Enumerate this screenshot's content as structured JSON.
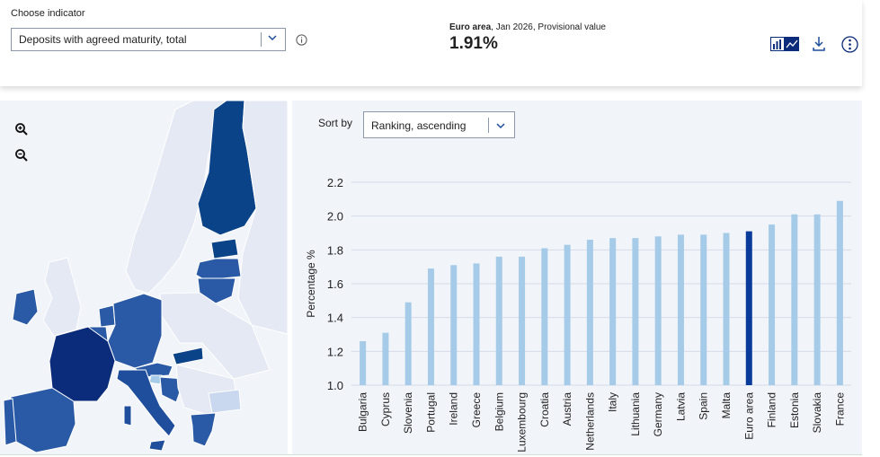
{
  "header": {
    "choose_label": "Choose indicator",
    "indicator_value": "Deposits with agreed maturity, total",
    "area_name": "Euro area",
    "area_detail": ", Jan 2026, Provisional value",
    "headline_value": "1.91%"
  },
  "icons": {
    "info": "info-icon",
    "chart_toggle": "bar-line-chart-icon",
    "download": "download-icon",
    "more": "more-options-icon",
    "zoom_in": "zoom-in-icon",
    "zoom_out": "zoom-out-icon",
    "chevron": "chevron-down-icon"
  },
  "sort": {
    "label": "Sort by",
    "value": "Ranking, ascending"
  },
  "colors": {
    "bar": "#a6cbe8",
    "highlight_bar": "#0a3a9a",
    "map_dark": "#0b2c7a",
    "map_mid": "#1f4e9d",
    "map_light": "#c9d8ee",
    "map_nondata": "#e4e9f3"
  },
  "chart_data": {
    "type": "bar",
    "categories": [
      "Bulgaria",
      "Cyprus",
      "Slovenia",
      "Portugal",
      "Ireland",
      "Greece",
      "Belgium",
      "Luxembourg",
      "Croatia",
      "Austria",
      "Netherlands",
      "Italy",
      "Lithuania",
      "Germany",
      "Latvia",
      "Spain",
      "Malta",
      "Euro area",
      "Finland",
      "Estonia",
      "Slovakia",
      "France"
    ],
    "values": [
      1.26,
      1.31,
      1.49,
      1.69,
      1.71,
      1.72,
      1.76,
      1.76,
      1.81,
      1.83,
      1.86,
      1.87,
      1.87,
      1.88,
      1.89,
      1.89,
      1.9,
      1.91,
      1.95,
      2.01,
      2.01,
      2.09
    ],
    "highlight": "Euro area",
    "title": "",
    "xlabel": "",
    "ylabel": "Percentage %",
    "ylim": [
      1.0,
      2.2
    ],
    "yticks": [
      "1.0",
      "1.2",
      "1.4",
      "1.6",
      "1.8",
      "2.0",
      "2.2"
    ],
    "grid": true,
    "legend": "none"
  }
}
